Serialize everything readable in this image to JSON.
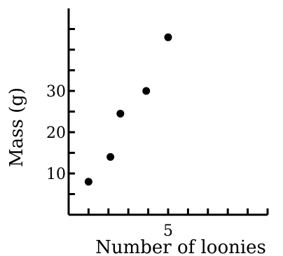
{
  "chart_data": {
    "type": "scatter",
    "xlabel": "Number of loonies",
    "ylabel": "Mass (g)",
    "x_tick_labels": [
      {
        "value": 5,
        "label": "5"
      }
    ],
    "y_tick_labels": [
      {
        "value": 10,
        "label": "10"
      },
      {
        "value": 20,
        "label": "20"
      },
      {
        "value": 30,
        "label": "30"
      }
    ],
    "xlim": [
      0,
      10
    ],
    "ylim": [
      0,
      50
    ],
    "x_minor_step": 1,
    "y_minor_step": 5,
    "grid": false,
    "points": [
      {
        "x": 1,
        "y": 8
      },
      {
        "x": 2.1,
        "y": 14
      },
      {
        "x": 2.6,
        "y": 24.5
      },
      {
        "x": 3.9,
        "y": 30
      },
      {
        "x": 5,
        "y": 43
      }
    ],
    "colors": {
      "axis": "#000000",
      "point": "#000000"
    }
  }
}
